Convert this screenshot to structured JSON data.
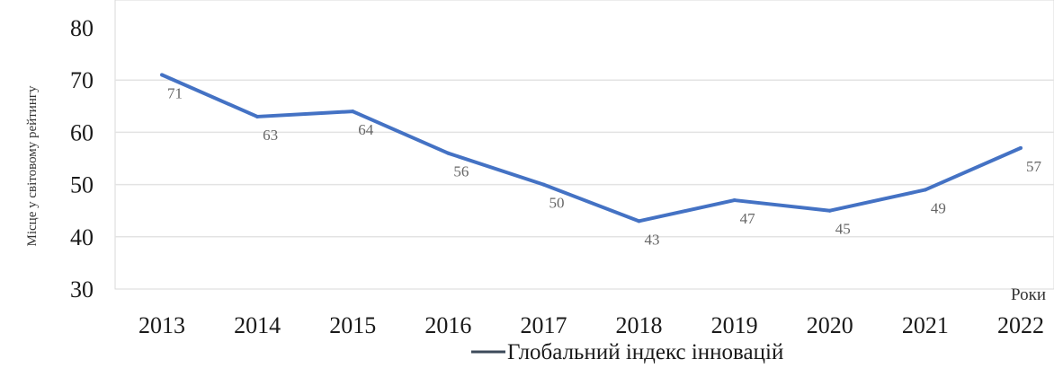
{
  "chart_data": {
    "type": "line",
    "categories": [
      "2013",
      "2014",
      "2015",
      "2016",
      "2017",
      "2018",
      "2019",
      "2020",
      "2021",
      "2022"
    ],
    "series": [
      {
        "name": "Глобальний індекс інновацій",
        "values": [
          71,
          63,
          64,
          56,
          50,
          43,
          47,
          45,
          49,
          57
        ],
        "labels": [
          "71",
          "63",
          "64",
          "56",
          "50",
          "43",
          "47",
          "45",
          "49",
          "57"
        ],
        "color": "#4472c4"
      }
    ],
    "ylabel": "Місце у світовому рейтингу",
    "xlabel": "Роки",
    "ylim": [
      30,
      80
    ],
    "yticks": [
      "30",
      "40",
      "50",
      "60",
      "70",
      "80"
    ],
    "grid": true,
    "legend_position": "bottom",
    "legend_line_color": "#3c4a5a"
  }
}
